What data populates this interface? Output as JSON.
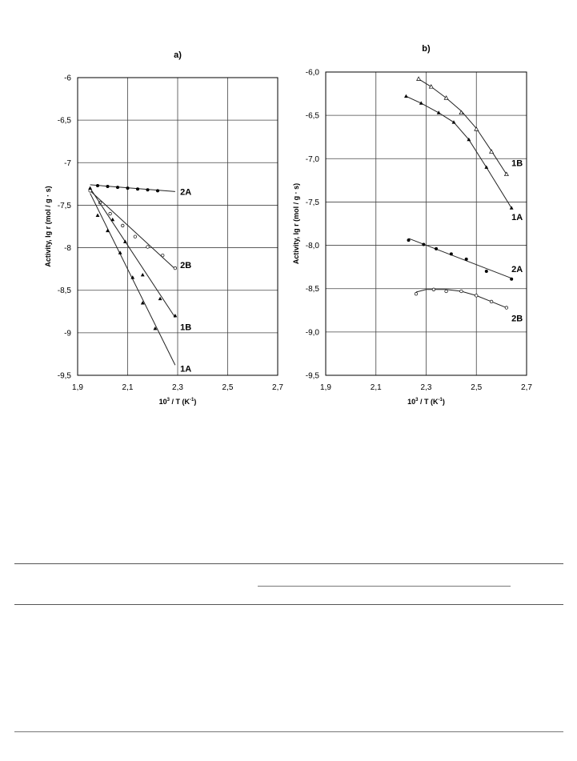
{
  "chart_data": [
    {
      "type": "scatter",
      "title": "a)",
      "xlabel_base": "10",
      "xlabel_sup": "3",
      "xlabel_mid": " / T (K",
      "xlabel_sup2": "-1",
      "xlabel_end": ")",
      "ylabel": "Activity, lg r (mol / g · s)",
      "xlim": [
        1.9,
        2.7
      ],
      "ylim": [
        -9.5,
        -6
      ],
      "xticks": [
        1.9,
        2.1,
        2.3,
        2.5,
        2.7
      ],
      "xtick_labels": [
        "1,9",
        "2,1",
        "2,3",
        "2,5",
        "2,7"
      ],
      "yticks": [
        -6,
        -6.5,
        -7,
        -7.5,
        -8,
        -8.5,
        -9,
        -9.5
      ],
      "ytick_labels": [
        "-6",
        "-6,5",
        "-7",
        "-7,5",
        "-8",
        "-8,5",
        "-9",
        "-9,5"
      ],
      "grid": true,
      "series": [
        {
          "name": "2A",
          "marker": "filled-circle",
          "x": [
            1.98,
            2.02,
            2.06,
            2.1,
            2.14,
            2.18,
            2.22
          ],
          "y": [
            -7.27,
            -7.28,
            -7.29,
            -7.3,
            -7.31,
            -7.32,
            -7.33
          ],
          "fit_x": [
            1.95,
            2.29
          ],
          "fit_y": [
            -7.26,
            -7.34
          ],
          "label_at": [
            2.31,
            -7.34
          ]
        },
        {
          "name": "2B",
          "marker": "open-circle",
          "x": [
            1.95,
            1.99,
            2.03,
            2.08,
            2.13,
            2.18,
            2.24,
            2.29
          ],
          "y": [
            -7.33,
            -7.47,
            -7.6,
            -7.74,
            -7.87,
            -7.99,
            -8.09,
            -8.24
          ],
          "fit_x": [
            1.95,
            2.29
          ],
          "fit_y": [
            -7.33,
            -8.25
          ],
          "label_at": [
            2.31,
            -8.2
          ]
        },
        {
          "name": "1B",
          "marker": "filled-triangle",
          "x": [
            1.95,
            2.04,
            2.09,
            2.16,
            2.23,
            2.29
          ],
          "y": [
            -7.3,
            -7.67,
            -7.93,
            -8.32,
            -8.6,
            -8.8
          ],
          "fit_x": [
            1.95,
            2.29
          ],
          "fit_y": [
            -7.3,
            -8.82
          ],
          "label_at": [
            2.31,
            -8.93
          ]
        },
        {
          "name": "1A",
          "marker": "filled-triangle",
          "x": [
            1.98,
            2.02,
            2.07,
            2.12,
            2.16,
            2.21
          ],
          "y": [
            -7.62,
            -7.8,
            -8.06,
            -8.35,
            -8.65,
            -8.95
          ],
          "fit_x": [
            1.95,
            2.29
          ],
          "fit_y": [
            -7.36,
            -9.38
          ],
          "label_at": [
            2.31,
            -9.42
          ]
        }
      ]
    },
    {
      "type": "scatter",
      "title": "b)",
      "xlabel_base": "10",
      "xlabel_sup": "3",
      "xlabel_mid": " / T (K",
      "xlabel_sup2": "-1",
      "xlabel_end": ")",
      "ylabel": "Activity, lg r (mol / g · s)",
      "xlim": [
        1.9,
        2.7
      ],
      "ylim": [
        -9.5,
        -6
      ],
      "xticks": [
        1.9,
        2.1,
        2.3,
        2.5,
        2.7
      ],
      "xtick_labels": [
        "1,9",
        "2,1",
        "2,3",
        "2,5",
        "2,7"
      ],
      "yticks": [
        -6,
        -6.5,
        -7,
        -7.5,
        -8,
        -8.5,
        -9,
        -9.5
      ],
      "ytick_labels": [
        "-6,0",
        "-6,5",
        "-7,0",
        "-7,5",
        "-8,0",
        "-8,5",
        "-9,0",
        "-9,5"
      ],
      "grid": true,
      "series": [
        {
          "name": "1B",
          "marker": "open-triangle",
          "x": [
            2.27,
            2.32,
            2.38,
            2.44,
            2.5,
            2.56,
            2.62
          ],
          "y": [
            -6.08,
            -6.17,
            -6.3,
            -6.47,
            -6.66,
            -6.92,
            -7.18
          ],
          "fit_x": [
            2.27,
            2.32,
            2.38,
            2.44,
            2.5,
            2.56,
            2.62
          ],
          "fit_y": [
            -6.08,
            -6.17,
            -6.3,
            -6.45,
            -6.65,
            -6.91,
            -7.18
          ],
          "label_at": [
            2.64,
            -7.05
          ]
        },
        {
          "name": "1A",
          "marker": "filled-triangle",
          "x": [
            2.22,
            2.28,
            2.35,
            2.41,
            2.47,
            2.54,
            2.64
          ],
          "y": [
            -6.28,
            -6.36,
            -6.47,
            -6.58,
            -6.78,
            -7.1,
            -7.57
          ],
          "fit_x": [
            2.22,
            2.28,
            2.35,
            2.41,
            2.47,
            2.54,
            2.64
          ],
          "fit_y": [
            -6.28,
            -6.36,
            -6.47,
            -6.58,
            -6.78,
            -7.1,
            -7.57
          ],
          "label_at": [
            2.64,
            -7.67
          ]
        },
        {
          "name": "2A",
          "marker": "filled-circle",
          "x": [
            2.23,
            2.29,
            2.34,
            2.4,
            2.46,
            2.54,
            2.64
          ],
          "y": [
            -7.94,
            -7.99,
            -8.04,
            -8.1,
            -8.16,
            -8.3,
            -8.39
          ],
          "fit_x": [
            2.23,
            2.64
          ],
          "fit_y": [
            -7.92,
            -8.38
          ],
          "label_at": [
            2.64,
            -8.27
          ]
        },
        {
          "name": "2B",
          "marker": "open-circle",
          "x": [
            2.26,
            2.33,
            2.38,
            2.44,
            2.5,
            2.56,
            2.62
          ],
          "y": [
            -8.56,
            -8.51,
            -8.53,
            -8.53,
            -8.58,
            -8.65,
            -8.72
          ],
          "fit_x": [
            2.26,
            2.3,
            2.38,
            2.44,
            2.5,
            2.56,
            2.62
          ],
          "fit_y": [
            -8.54,
            -8.51,
            -8.51,
            -8.53,
            -8.58,
            -8.65,
            -8.72
          ],
          "label_at": [
            2.64,
            -8.84
          ]
        }
      ]
    }
  ]
}
